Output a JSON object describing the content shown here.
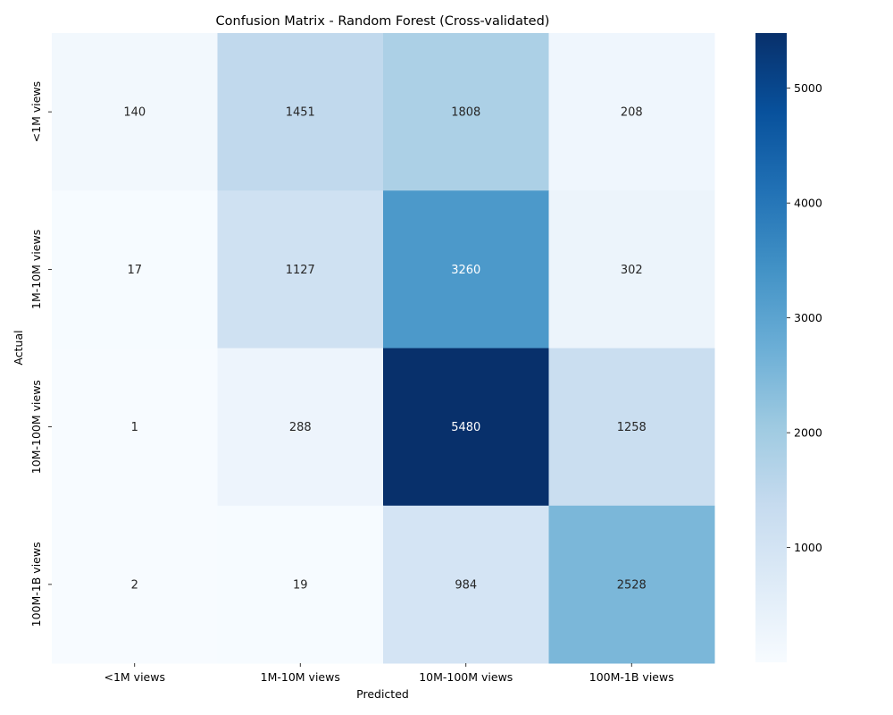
{
  "chart_data": {
    "type": "heatmap",
    "title": "Confusion Matrix - Random Forest (Cross-validated)",
    "xlabel": "Predicted",
    "ylabel": "Actual",
    "x_categories": [
      "<1M views",
      "1M-10M views",
      "10M-100M views",
      "100M-1B views"
    ],
    "y_categories": [
      "<1M views",
      "1M-10M views",
      "10M-100M views",
      "100M-1B views"
    ],
    "values": [
      [
        140,
        1451,
        1808,
        208
      ],
      [
        17,
        1127,
        3260,
        302
      ],
      [
        1,
        288,
        5480,
        1258
      ],
      [
        2,
        19,
        984,
        2528
      ]
    ],
    "colorbar": {
      "vmin": 1,
      "vmax": 5480,
      "ticks": [
        1000,
        2000,
        3000,
        4000,
        5000
      ],
      "colormap": "Blues"
    },
    "colormap_stops": [
      "#f7fbff",
      "#deebf7",
      "#c6dbef",
      "#9ecae1",
      "#6baed6",
      "#4292c6",
      "#2171b5",
      "#08519c",
      "#08306b"
    ]
  }
}
